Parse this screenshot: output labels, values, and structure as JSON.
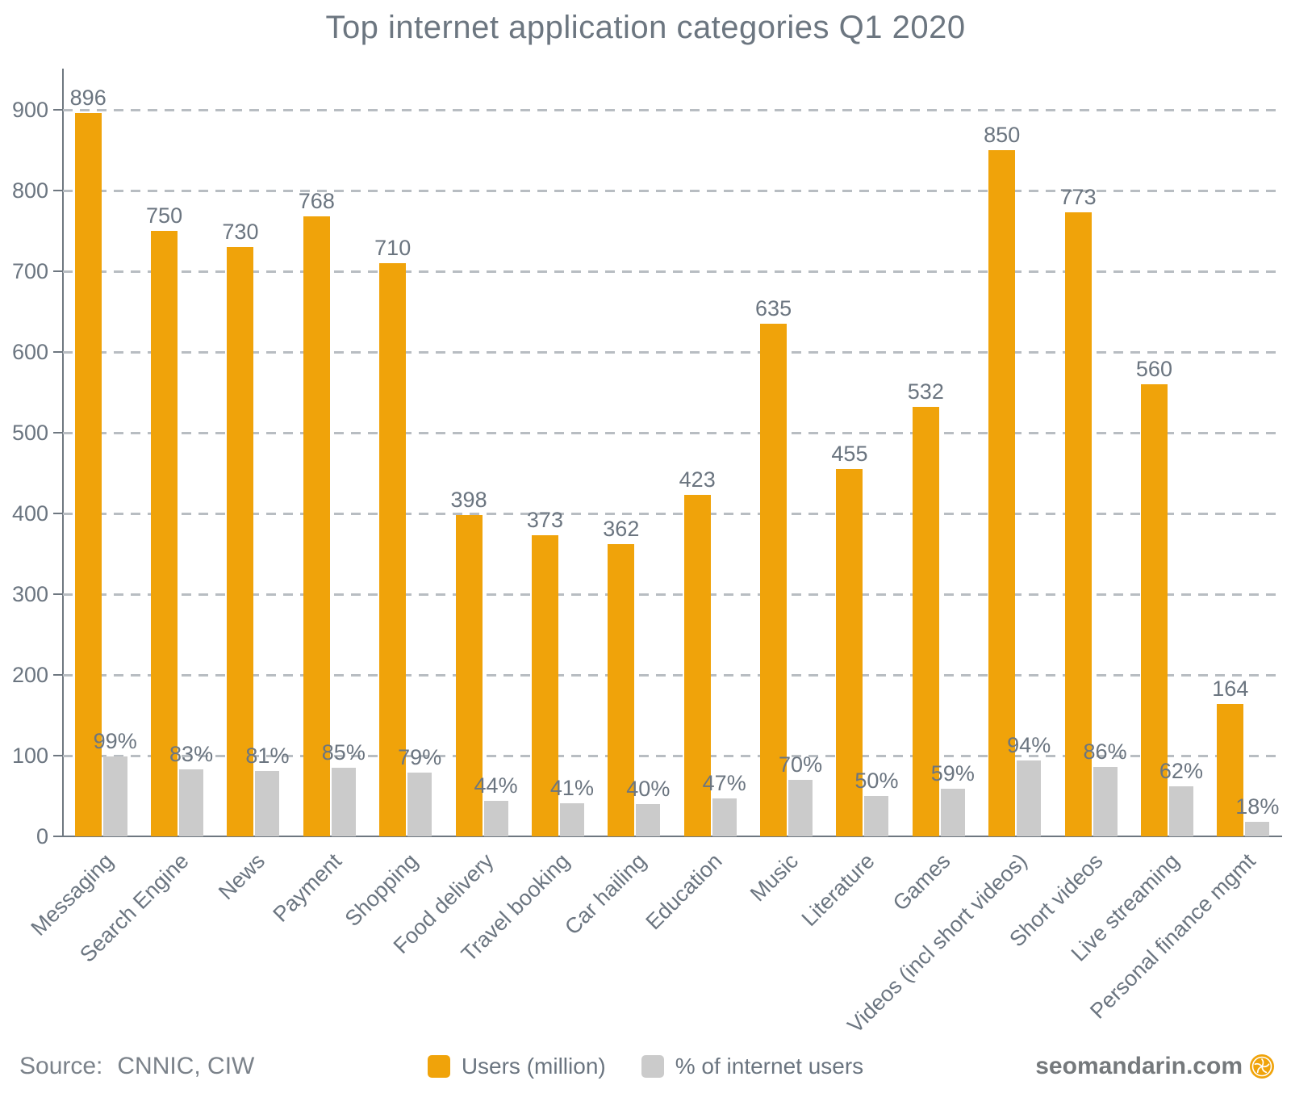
{
  "title": "Top internet application categories Q1 2020",
  "source": {
    "label": "Source:",
    "value": "CNNIC, CIW"
  },
  "watermark": {
    "text": "seomandarin.com",
    "icon": "coin-fan-icon"
  },
  "legend": [
    {
      "label": "Users (million)",
      "color": "#f0a30a"
    },
    {
      "label": "% of internet users",
      "color": "#cbcbcb"
    }
  ],
  "colors": {
    "users_bar": "#f0a30a",
    "pct_bar": "#cbcbcb",
    "text": "#6b7580",
    "axis": "#6e7780",
    "gridline": "#b8bdc2"
  },
  "chart_data": {
    "type": "bar",
    "title": "Top internet application categories Q1 2020",
    "categories": [
      "Messaging",
      "Search Engine",
      "News",
      "Payment",
      "Shopping",
      "Food delivery",
      "Travel booking",
      "Car hailing",
      "Education",
      "Music",
      "Literature",
      "Games",
      "Videos (incl short videos)",
      "Short videos",
      "Live streaming",
      "Personal finance mgmt"
    ],
    "series": [
      {
        "name": "Users (million)",
        "values": [
          896,
          750,
          730,
          768,
          710,
          398,
          373,
          362,
          423,
          635,
          455,
          532,
          850,
          773,
          560,
          164
        ],
        "labels": [
          "896",
          "750",
          "730",
          "768",
          "710",
          "398",
          "373",
          "362",
          "423",
          "635",
          "455",
          "532",
          "850",
          "773",
          "560",
          "164"
        ]
      },
      {
        "name": "% of internet users",
        "values": [
          99,
          83,
          81,
          85,
          79,
          44,
          41,
          40,
          47,
          70,
          50,
          59,
          94,
          86,
          62,
          18
        ],
        "labels": [
          "99%",
          "83%",
          "81%",
          "85%",
          "79%",
          "44%",
          "41%",
          "40%",
          "47%",
          "70%",
          "50%",
          "59%",
          "94%",
          "86%",
          "62%",
          "18%"
        ]
      }
    ],
    "xlabel": "",
    "ylabel": "",
    "ylim": [
      0,
      900
    ],
    "yticks": [
      0,
      100,
      200,
      300,
      400,
      500,
      600,
      700,
      800,
      900
    ],
    "grid": "horizontal-dashed",
    "legend_position": "bottom"
  }
}
